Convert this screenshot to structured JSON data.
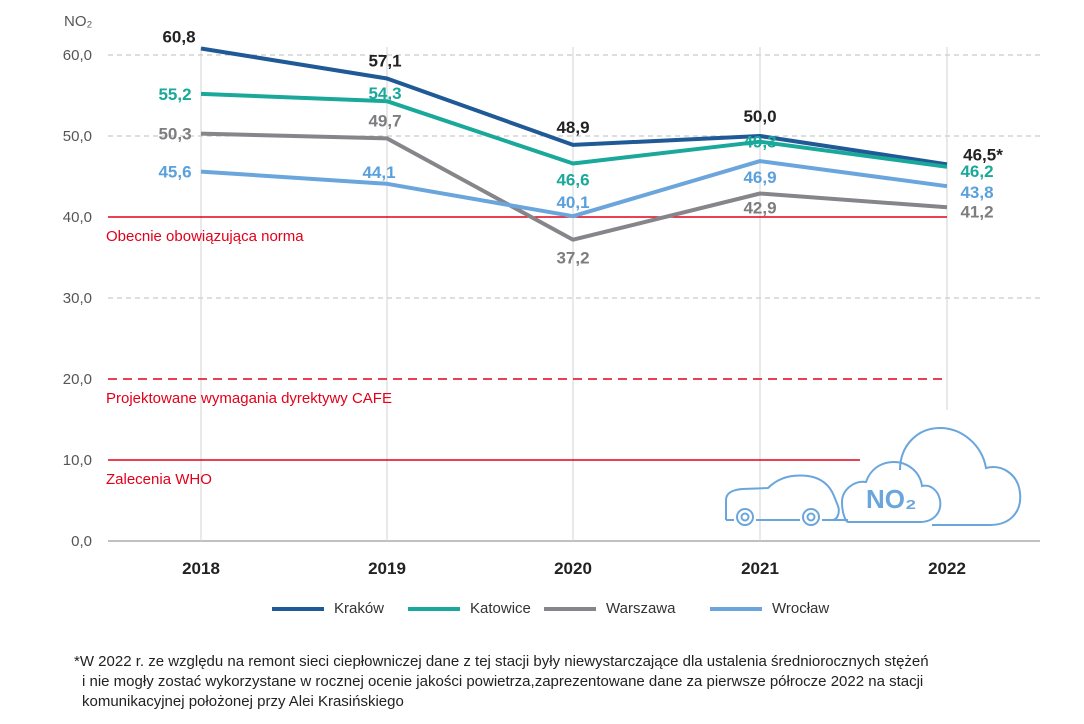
{
  "chart_data": {
    "type": "line",
    "ylabel": "NO₂",
    "categories": [
      "2018",
      "2019",
      "2020",
      "2021",
      "2022"
    ],
    "ylim": [
      0,
      60
    ],
    "yticks": [
      "0,0",
      "10,0",
      "20,0",
      "30,0",
      "40,0",
      "50,0",
      "60,0"
    ],
    "grid": true,
    "series": [
      {
        "name": "Kraków",
        "color": "#1f5a96",
        "values": [
          60.8,
          57.1,
          48.9,
          50.0,
          46.5
        ],
        "labels": [
          "60,8",
          "57,1",
          "48,9",
          "50,0",
          "46,5*"
        ],
        "label_color": "#222222"
      },
      {
        "name": "Katowice",
        "color": "#1aa89a",
        "values": [
          55.2,
          54.3,
          46.6,
          49.3,
          46.2
        ],
        "labels": [
          "55,2",
          "54,3",
          "46,6",
          "49,3",
          "46,2"
        ],
        "label_color": "#1aa89a"
      },
      {
        "name": "Warszawa",
        "color": "#86868a",
        "values": [
          50.3,
          49.7,
          37.2,
          42.9,
          41.2
        ],
        "labels": [
          "50,3",
          "49,7",
          "37,2",
          "42,9",
          "41,2"
        ],
        "label_color": "#7d7d80"
      },
      {
        "name": "Wrocław",
        "color": "#6aa6dc",
        "values": [
          45.6,
          44.1,
          40.1,
          46.9,
          43.8
        ],
        "labels": [
          "45,6",
          "44,1",
          "40,1",
          "46,9",
          "43,8"
        ],
        "label_color": "#5aa0dc"
      }
    ],
    "reference_lines": [
      {
        "value": 40,
        "style": "solid",
        "color": "#e3001b",
        "label": "Obecnie obowiązująca norma"
      },
      {
        "value": 20,
        "style": "dashed",
        "color": "#e3001b",
        "label": "Projektowane wymagania dyrektywy CAFE"
      },
      {
        "value": 10,
        "style": "solid",
        "color": "#e3001b",
        "label": "Zalecenia WHO"
      }
    ],
    "legend_position": "bottom",
    "illustration": {
      "icon": "car-and-clouds-icon",
      "text": "NO₂",
      "color": "#6aa6dc"
    }
  },
  "footnote": [
    "*W 2022 r. ze względu na remont sieci ciepłowniczej dane z tej stacji były niewystarczające dla ustalenia średniorocznych stężeń",
    "i nie mogły zostać wykorzystane w rocznej ocenie jakości powietrza,zaprezentowane dane za pierwsze półrocze 2022 na stacji",
    "komunikacyjnej położonej przy Alei Krasińskiego"
  ]
}
